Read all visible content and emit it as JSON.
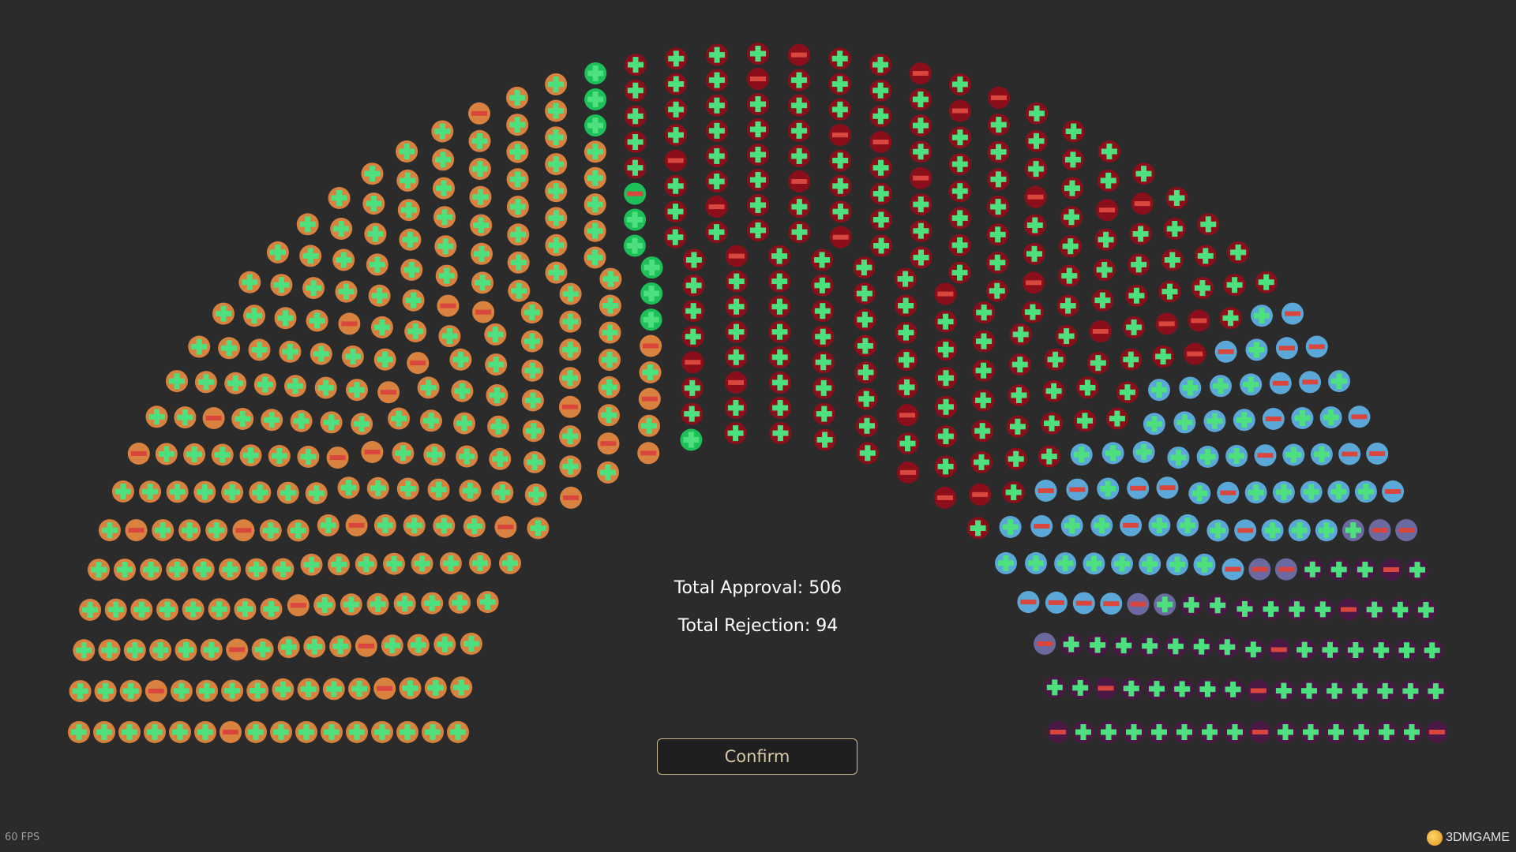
{
  "totals": {
    "approval_label": "Total Approval: 506",
    "rejection_label": "Total Rejection: 94"
  },
  "confirm_label": "Confirm",
  "fps_label": "60 FPS",
  "watermark_text": "3DMGAME",
  "seat_icons": {
    "approve": "plus-icon",
    "reject": "minus-icon"
  },
  "colors": {
    "background": "#2b2b2b",
    "approve_symbol": "#4ee07e",
    "reject_symbol": "#d9463e",
    "faction_orange": "#d9823f",
    "faction_green": "#1ec05a",
    "faction_red": "#8b0f1a",
    "faction_blue": "#5aa7d8",
    "faction_slate": "#6a6aa0",
    "faction_purple": "#4a1845"
  },
  "chart_data": {
    "type": "parliament",
    "total_seats": 600,
    "approve": 506,
    "reject": 94,
    "factions": [
      {
        "color": "#d9823f",
        "seats": 250,
        "reject": 26
      },
      {
        "color": "#1ec05a",
        "seats": 10,
        "reject": 1
      },
      {
        "color": "#8b0f1a",
        "seats": 200,
        "reject": 28
      },
      {
        "color": "#5aa7d8",
        "seats": 70,
        "reject": 25
      },
      {
        "color": "#6a6aa0",
        "seats": 8,
        "reject": 6
      },
      {
        "color": "#4a1845",
        "seats": 62,
        "reject": 8
      }
    ]
  }
}
